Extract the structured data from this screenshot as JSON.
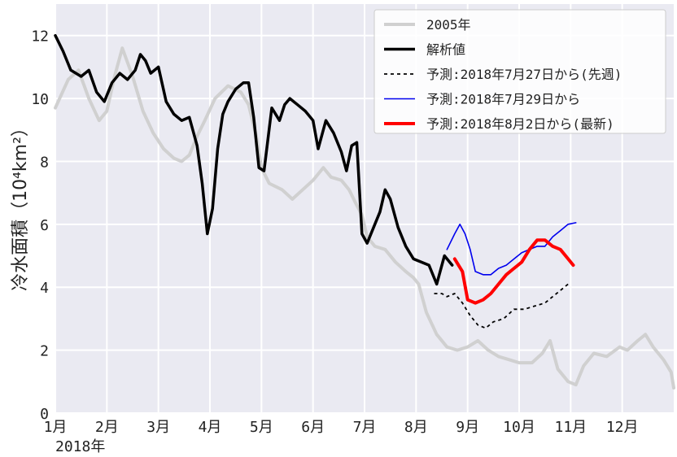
{
  "chart_data": {
    "type": "line",
    "title": "",
    "ylabel": "冷水面積（10⁴km²）",
    "xlabel_year": "2018年",
    "ylim": [
      0,
      13
    ],
    "xlim": [
      0,
      12
    ],
    "y_ticks": [
      0,
      2,
      4,
      6,
      8,
      10,
      12
    ],
    "x_tick_labels": [
      "1月",
      "2月",
      "3月",
      "4月",
      "5月",
      "6月",
      "7月",
      "8月",
      "9月",
      "10月",
      "11月",
      "12月"
    ],
    "grid": true,
    "legend_position": "top-right",
    "series": [
      {
        "name": "2005年",
        "color": "#d0d0d0",
        "style": "solid",
        "points": [
          [
            0.0,
            9.7
          ],
          [
            0.25,
            10.6
          ],
          [
            0.45,
            10.9
          ],
          [
            0.65,
            10.0
          ],
          [
            0.85,
            9.3
          ],
          [
            1.0,
            9.6
          ],
          [
            1.15,
            10.7
          ],
          [
            1.3,
            11.6
          ],
          [
            1.5,
            10.7
          ],
          [
            1.7,
            9.6
          ],
          [
            1.9,
            8.9
          ],
          [
            2.1,
            8.4
          ],
          [
            2.3,
            8.1
          ],
          [
            2.45,
            8.0
          ],
          [
            2.6,
            8.2
          ],
          [
            2.75,
            8.8
          ],
          [
            2.9,
            9.3
          ],
          [
            3.1,
            10.0
          ],
          [
            3.35,
            10.4
          ],
          [
            3.6,
            10.2
          ],
          [
            3.75,
            9.8
          ],
          [
            3.9,
            8.8
          ],
          [
            4.0,
            7.8
          ],
          [
            4.15,
            7.3
          ],
          [
            4.4,
            7.1
          ],
          [
            4.6,
            6.8
          ],
          [
            4.8,
            7.1
          ],
          [
            5.0,
            7.4
          ],
          [
            5.2,
            7.8
          ],
          [
            5.35,
            7.5
          ],
          [
            5.55,
            7.4
          ],
          [
            5.7,
            7.1
          ],
          [
            5.85,
            6.6
          ],
          [
            5.95,
            6.3
          ],
          [
            6.05,
            5.6
          ],
          [
            6.2,
            5.3
          ],
          [
            6.4,
            5.2
          ],
          [
            6.6,
            4.8
          ],
          [
            6.8,
            4.5
          ],
          [
            6.95,
            4.3
          ],
          [
            7.05,
            4.1
          ],
          [
            7.2,
            3.2
          ],
          [
            7.4,
            2.5
          ],
          [
            7.6,
            2.1
          ],
          [
            7.8,
            2.0
          ],
          [
            8.0,
            2.1
          ],
          [
            8.2,
            2.3
          ],
          [
            8.4,
            2.0
          ],
          [
            8.6,
            1.8
          ],
          [
            8.8,
            1.7
          ],
          [
            9.0,
            1.6
          ],
          [
            9.25,
            1.6
          ],
          [
            9.45,
            1.9
          ],
          [
            9.6,
            2.3
          ],
          [
            9.75,
            1.4
          ],
          [
            9.95,
            1.0
          ],
          [
            10.1,
            0.9
          ],
          [
            10.25,
            1.5
          ],
          [
            10.45,
            1.9
          ],
          [
            10.7,
            1.8
          ],
          [
            10.95,
            2.1
          ],
          [
            11.1,
            2.0
          ],
          [
            11.3,
            2.3
          ],
          [
            11.45,
            2.5
          ],
          [
            11.6,
            2.1
          ],
          [
            11.8,
            1.7
          ],
          [
            11.95,
            1.3
          ],
          [
            12.0,
            0.8
          ]
        ]
      },
      {
        "name": "解析値",
        "color": "#000000",
        "style": "solid",
        "points": [
          [
            0.0,
            12.0
          ],
          [
            0.15,
            11.5
          ],
          [
            0.3,
            10.9
          ],
          [
            0.5,
            10.7
          ],
          [
            0.65,
            10.9
          ],
          [
            0.8,
            10.2
          ],
          [
            0.95,
            9.9
          ],
          [
            1.1,
            10.5
          ],
          [
            1.25,
            10.8
          ],
          [
            1.4,
            10.6
          ],
          [
            1.55,
            10.9
          ],
          [
            1.65,
            11.4
          ],
          [
            1.75,
            11.2
          ],
          [
            1.85,
            10.8
          ],
          [
            2.0,
            11.0
          ],
          [
            2.15,
            9.9
          ],
          [
            2.3,
            9.5
          ],
          [
            2.45,
            9.3
          ],
          [
            2.6,
            9.4
          ],
          [
            2.75,
            8.5
          ],
          [
            2.85,
            7.3
          ],
          [
            2.95,
            5.7
          ],
          [
            3.05,
            6.5
          ],
          [
            3.15,
            8.4
          ],
          [
            3.25,
            9.5
          ],
          [
            3.35,
            9.9
          ],
          [
            3.5,
            10.3
          ],
          [
            3.65,
            10.5
          ],
          [
            3.75,
            10.5
          ],
          [
            3.85,
            9.4
          ],
          [
            3.95,
            7.8
          ],
          [
            4.05,
            7.7
          ],
          [
            4.2,
            9.7
          ],
          [
            4.35,
            9.3
          ],
          [
            4.45,
            9.8
          ],
          [
            4.55,
            10.0
          ],
          [
            4.7,
            9.8
          ],
          [
            4.85,
            9.6
          ],
          [
            5.0,
            9.3
          ],
          [
            5.1,
            8.4
          ],
          [
            5.25,
            9.3
          ],
          [
            5.4,
            8.9
          ],
          [
            5.55,
            8.3
          ],
          [
            5.65,
            7.7
          ],
          [
            5.75,
            8.5
          ],
          [
            5.85,
            8.6
          ],
          [
            5.95,
            5.7
          ],
          [
            6.05,
            5.4
          ],
          [
            6.2,
            6.0
          ],
          [
            6.3,
            6.4
          ],
          [
            6.4,
            7.1
          ],
          [
            6.5,
            6.8
          ],
          [
            6.65,
            5.9
          ],
          [
            6.8,
            5.3
          ],
          [
            6.95,
            4.9
          ],
          [
            7.1,
            4.8
          ],
          [
            7.25,
            4.7
          ],
          [
            7.4,
            4.1
          ],
          [
            7.55,
            5.0
          ],
          [
            7.7,
            4.7
          ]
        ]
      },
      {
        "name": "予測:2018年7月27日から(先週)",
        "color": "#000000",
        "style": "dashed",
        "points": [
          [
            7.35,
            3.8
          ],
          [
            7.5,
            3.8
          ],
          [
            7.6,
            3.7
          ],
          [
            7.75,
            3.8
          ],
          [
            7.9,
            3.5
          ],
          [
            8.05,
            3.1
          ],
          [
            8.2,
            2.8
          ],
          [
            8.35,
            2.7
          ],
          [
            8.5,
            2.9
          ],
          [
            8.7,
            3.0
          ],
          [
            8.9,
            3.3
          ],
          [
            9.1,
            3.3
          ],
          [
            9.3,
            3.4
          ],
          [
            9.5,
            3.5
          ],
          [
            9.65,
            3.7
          ],
          [
            9.8,
            3.9
          ],
          [
            9.95,
            4.1
          ]
        ]
      },
      {
        "name": "予測:2018年7月29日から",
        "color": "#0000ee",
        "style": "solid",
        "points": [
          [
            7.6,
            5.2
          ],
          [
            7.75,
            5.7
          ],
          [
            7.85,
            6.0
          ],
          [
            7.95,
            5.7
          ],
          [
            8.05,
            5.2
          ],
          [
            8.15,
            4.5
          ],
          [
            8.3,
            4.4
          ],
          [
            8.45,
            4.4
          ],
          [
            8.6,
            4.6
          ],
          [
            8.75,
            4.7
          ],
          [
            8.9,
            4.9
          ],
          [
            9.05,
            5.1
          ],
          [
            9.2,
            5.2
          ],
          [
            9.35,
            5.3
          ],
          [
            9.5,
            5.3
          ],
          [
            9.65,
            5.6
          ],
          [
            9.8,
            5.8
          ],
          [
            9.95,
            6.0
          ],
          [
            10.1,
            6.05
          ]
        ]
      },
      {
        "name": "予測:2018年8月2日から(最新)",
        "color": "#ff0000",
        "style": "solid",
        "points": [
          [
            7.75,
            4.9
          ],
          [
            7.9,
            4.5
          ],
          [
            8.0,
            3.6
          ],
          [
            8.15,
            3.5
          ],
          [
            8.3,
            3.6
          ],
          [
            8.45,
            3.8
          ],
          [
            8.6,
            4.1
          ],
          [
            8.75,
            4.4
          ],
          [
            8.9,
            4.6
          ],
          [
            9.05,
            4.8
          ],
          [
            9.2,
            5.2
          ],
          [
            9.35,
            5.5
          ],
          [
            9.5,
            5.5
          ],
          [
            9.65,
            5.3
          ],
          [
            9.8,
            5.2
          ],
          [
            9.95,
            4.9
          ],
          [
            10.05,
            4.7
          ]
        ]
      }
    ]
  }
}
